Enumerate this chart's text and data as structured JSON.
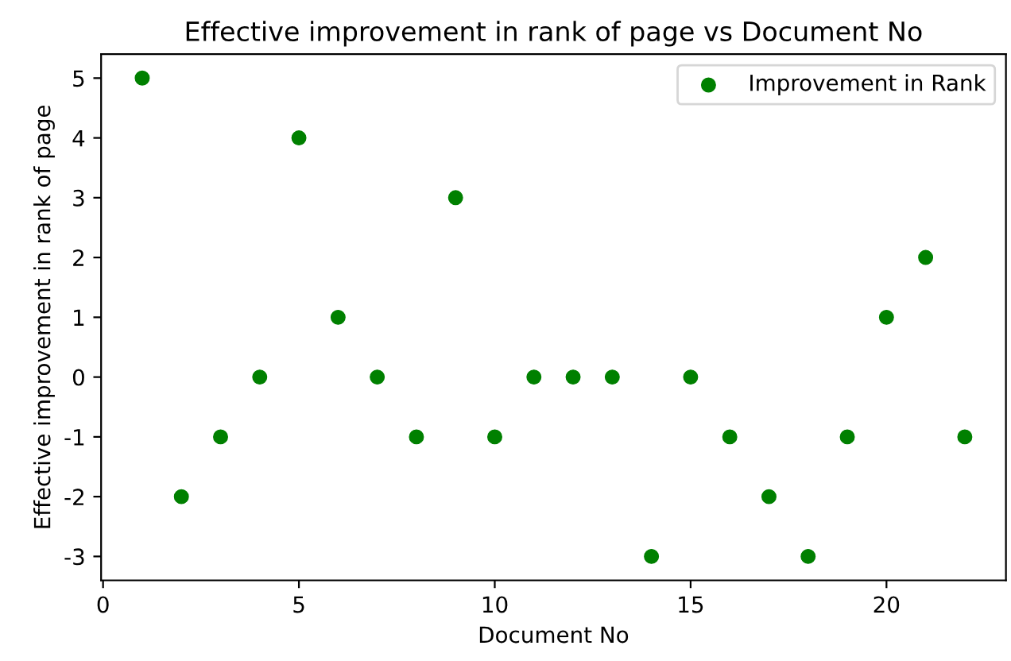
{
  "chart_data": {
    "type": "scatter",
    "title": "Effective improvement in rank of page vs Document No",
    "xlabel": "Document No",
    "ylabel": "Effective improvement in rank of page",
    "x": [
      1,
      2,
      3,
      4,
      5,
      6,
      7,
      8,
      9,
      10,
      11,
      12,
      13,
      14,
      15,
      16,
      17,
      18,
      19,
      20,
      21,
      22
    ],
    "series": [
      {
        "name": "Improvement in Rank",
        "color": "#008000",
        "values": [
          5,
          -2,
          -1,
          0,
          4,
          1,
          0,
          -1,
          3,
          -1,
          0,
          0,
          0,
          -3,
          0,
          -1,
          -2,
          -3,
          -1,
          1,
          2,
          -1
        ]
      }
    ],
    "xlim": [
      -0.05,
      23.05
    ],
    "xticks": [
      0,
      5,
      10,
      15,
      20
    ],
    "ylim": [
      -3.4,
      5.4
    ],
    "yticks": [
      -3,
      -2,
      -1,
      0,
      1,
      2,
      3,
      4,
      5
    ],
    "marker": "circle",
    "legend": "top right",
    "grid": false
  }
}
